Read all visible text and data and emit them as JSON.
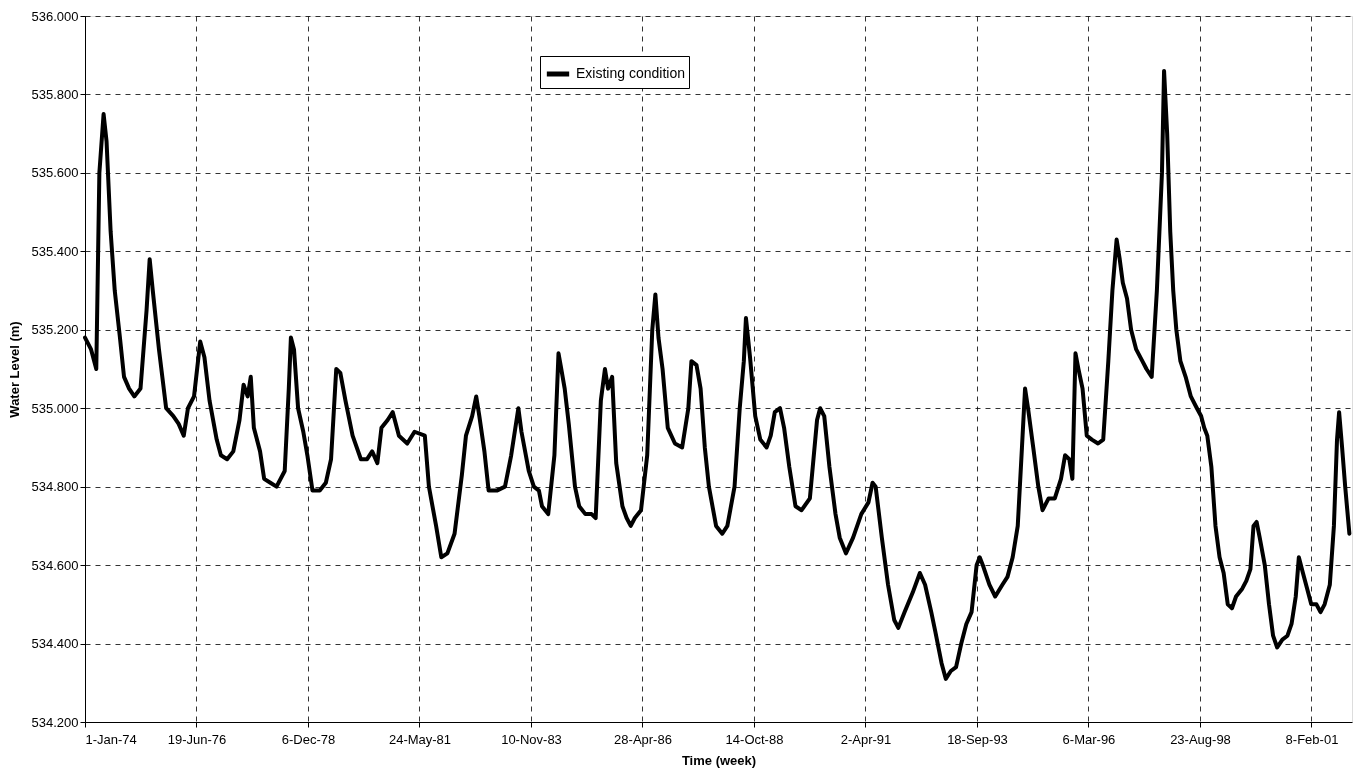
{
  "chart_data": {
    "type": "line",
    "xlabel": "Time (week)",
    "ylabel": "Water Level (m)",
    "x": [
      "1974-01-01",
      "1974-02-19",
      "1974-04-02",
      "1974-04-27",
      "1974-05-31",
      "1974-06-24",
      "1974-07-27",
      "1974-08-29",
      "1974-10-10",
      "1974-11-12",
      "1974-12-23",
      "1975-02-03",
      "1975-03-25",
      "1975-05-13",
      "1975-06-07",
      "1975-07-02",
      "1975-08-21",
      "1975-10-18",
      "1975-12-15",
      "1976-01-27",
      "1976-03-08",
      "1976-04-11",
      "1976-05-30",
      "1976-07-19",
      "1976-08-22",
      "1976-10-02",
      "1976-11-29",
      "1977-01-02",
      "1977-02-21",
      "1977-04-12",
      "1977-06-01",
      "1977-07-04",
      "1977-08-06",
      "1977-08-31",
      "1977-09-25",
      "1977-11-14",
      "1977-12-17",
      "1978-02-05",
      "1978-03-27",
      "1978-06-01",
      "1978-07-04",
      "1978-07-21",
      "1978-08-15",
      "1978-09-17",
      "1978-10-29",
      "1978-12-01",
      "1979-01-11",
      "1979-03-11",
      "1979-04-29",
      "1979-06-10",
      "1979-07-22",
      "1979-08-24",
      "1979-10-04",
      "1979-12-01",
      "1980-02-06",
      "1980-03-27",
      "1980-05-07",
      "1980-06-18",
      "1980-07-21",
      "1980-09-09",
      "1980-10-20",
      "1980-12-09",
      "1981-02-14",
      "1981-04-14",
      "1981-07-06",
      "1981-08-08",
      "1981-10-05",
      "1981-11-16",
      "1982-01-04",
      "1982-03-03",
      "1982-05-01",
      "1982-06-03",
      "1982-07-23",
      "1982-08-25",
      "1982-09-19",
      "1982-10-30",
      "1982-12-03",
      "1983-02-07",
      "1983-04-14",
      "1983-06-03",
      "1983-07-31",
      "1983-08-25",
      "1983-10-23",
      "1983-12-03",
      "1984-01-13",
      "1984-02-07",
      "1984-03-28",
      "1984-05-17",
      "1984-06-19",
      "1984-07-06",
      "1984-08-08",
      "1984-09-10",
      "1984-10-30",
      "1984-12-03",
      "1985-01-22",
      "1985-03-13",
      "1985-04-15",
      "1985-05-27",
      "1985-06-29",
      "1985-07-24",
      "1985-08-26",
      "1985-09-28",
      "1985-11-17",
      "1985-12-21",
      "1986-01-23",
      "1986-02-25",
      "1986-04-16",
      "1986-06-05",
      "1986-07-16",
      "1986-08-10",
      "1986-09-04",
      "1986-10-07",
      "1986-11-18",
      "1987-01-15",
      "1987-03-14",
      "1987-05-03",
      "1987-05-28",
      "1987-07-08",
      "1987-08-10",
      "1987-09-13",
      "1987-10-16",
      "1987-12-13",
      "1988-02-01",
      "1988-03-13",
      "1988-05-10",
      "1988-06-21",
      "1988-07-24",
      "1988-08-10",
      "1988-09-12",
      "1988-10-24",
      "1988-12-04",
      "1989-01-24",
      "1989-02-26",
      "1989-03-31",
      "1989-05-12",
      "1989-06-14",
      "1989-07-26",
      "1989-09-14",
      "1989-11-02",
      "1990-01-08",
      "1990-03-07",
      "1990-04-01",
      "1990-05-04",
      "1990-06-15",
      "1990-08-03",
      "1990-09-06",
      "1990-10-26",
      "1990-12-23",
      "1991-02-27",
      "1991-04-26",
      "1991-05-29",
      "1991-06-23",
      "1991-08-12",
      "1991-10-01",
      "1991-11-20",
      "1991-12-23",
      "1992-02-11",
      "1992-04-17",
      "1992-06-14",
      "1992-07-26",
      "1992-09-14",
      "1992-10-17",
      "1992-12-06",
      "1993-01-09",
      "1993-02-19",
      "1993-04-02",
      "1993-05-14",
      "1993-06-24",
      "1993-08-05",
      "1993-09-15",
      "1993-10-10",
      "1993-11-04",
      "1993-12-27",
      "1994-02-12",
      "1994-04-11",
      "1994-05-22",
      "1994-07-03",
      "1994-08-13",
      "1994-09-16",
      "1994-10-11",
      "1994-11-04",
      "1994-12-16",
      "1995-01-26",
      "1995-03-01",
      "1995-04-19",
      "1995-06-08",
      "1995-07-28",
      "1995-08-30",
      "1995-10-03",
      "1995-10-28",
      "1995-11-22",
      "1995-12-16",
      "1996-01-18",
      "1996-02-21",
      "1996-04-02",
      "1996-05-22",
      "1996-07-03",
      "1996-08-13",
      "1996-09-15",
      "1996-10-19",
      "1996-11-13",
      "1996-12-08",
      "1997-01-11",
      "1997-02-13",
      "1997-03-26",
      "1997-05-15",
      "1997-06-17",
      "1997-07-29",
      "1997-09-09",
      "1997-10-20",
      "1997-11-06",
      "1997-12-01",
      "1997-12-26",
      "1998-01-19",
      "1998-02-13",
      "1998-03-18",
      "1998-04-29",
      "1998-06-10",
      "1998-07-29",
      "1998-09-01",
      "1998-09-26",
      "1998-10-21",
      "1998-11-23",
      "1998-12-26",
      "1999-01-28",
      "1999-03-02",
      "1999-04-04",
      "1999-05-08",
      "1999-06-10",
      "1999-07-30",
      "1999-09-01",
      "1999-10-04",
      "1999-10-29",
      "1999-11-23",
      "1999-12-18",
      "2000-01-28",
      "2000-03-02",
      "2000-04-04",
      "2000-05-07",
      "2000-06-18",
      "2000-07-29",
      "2000-08-31",
      "2000-10-04",
      "2000-10-29",
      "2000-12-01",
      "2001-01-04",
      "2001-02-06",
      "2001-03-20",
      "2001-04-22",
      "2001-05-25",
      "2001-07-06",
      "2001-08-08",
      "2001-09-02",
      "2001-09-19",
      "2001-10-13",
      "2001-11-07",
      "2001-12-11"
    ],
    "series": [
      {
        "name": "Existing condition",
        "color": "#000000",
        "values": [
          535.18,
          535.15,
          535.1,
          535.6,
          535.75,
          535.68,
          535.45,
          535.3,
          535.18,
          535.08,
          535.05,
          535.03,
          535.05,
          535.25,
          535.38,
          535.3,
          535.15,
          535.0,
          534.98,
          534.96,
          534.93,
          535.0,
          535.03,
          535.17,
          535.13,
          535.02,
          534.92,
          534.88,
          534.87,
          534.89,
          534.97,
          535.06,
          535.03,
          535.08,
          534.95,
          534.89,
          534.82,
          534.81,
          534.8,
          534.84,
          535.05,
          535.18,
          535.15,
          535.0,
          534.94,
          534.88,
          534.79,
          534.79,
          534.81,
          534.87,
          535.1,
          535.09,
          535.02,
          534.93,
          534.87,
          534.87,
          534.89,
          534.86,
          534.95,
          534.97,
          534.99,
          534.93,
          534.91,
          534.94,
          534.93,
          534.8,
          534.7,
          534.62,
          534.63,
          534.68,
          534.83,
          534.93,
          534.98,
          535.03,
          534.98,
          534.89,
          534.79,
          534.79,
          534.8,
          534.88,
          535.0,
          534.94,
          534.84,
          534.8,
          534.79,
          534.75,
          534.73,
          534.88,
          535.14,
          535.11,
          535.05,
          534.96,
          534.8,
          534.75,
          534.73,
          534.73,
          534.72,
          535.02,
          535.1,
          535.05,
          535.08,
          534.86,
          534.75,
          534.72,
          534.7,
          534.72,
          534.74,
          534.88,
          535.2,
          535.29,
          535.18,
          535.1,
          534.95,
          534.91,
          534.9,
          535.0,
          535.12,
          535.11,
          535.05,
          534.9,
          534.8,
          534.7,
          534.68,
          534.7,
          534.8,
          535.0,
          535.12,
          535.23,
          535.13,
          534.98,
          534.92,
          534.9,
          534.93,
          534.99,
          535.0,
          534.95,
          534.85,
          534.75,
          534.74,
          534.77,
          534.97,
          535.0,
          534.98,
          534.85,
          534.73,
          534.67,
          534.63,
          534.67,
          534.73,
          534.76,
          534.81,
          534.8,
          534.67,
          534.55,
          534.46,
          534.44,
          534.48,
          534.53,
          534.58,
          534.55,
          534.48,
          534.43,
          534.35,
          534.31,
          534.33,
          534.34,
          534.4,
          534.45,
          534.48,
          534.6,
          534.62,
          534.6,
          534.55,
          534.52,
          534.55,
          534.57,
          534.62,
          534.7,
          534.9,
          535.05,
          535.0,
          534.9,
          534.8,
          534.74,
          534.77,
          534.77,
          534.82,
          534.88,
          534.87,
          534.82,
          535.14,
          535.1,
          535.05,
          534.93,
          534.92,
          534.91,
          534.92,
          535.12,
          535.3,
          535.43,
          535.38,
          535.32,
          535.28,
          535.2,
          535.15,
          535.12,
          535.1,
          535.08,
          535.3,
          535.6,
          535.86,
          535.7,
          535.45,
          535.3,
          535.2,
          535.12,
          535.08,
          535.03,
          535.0,
          534.98,
          534.95,
          534.93,
          534.85,
          534.7,
          534.62,
          534.58,
          534.5,
          534.49,
          534.52,
          534.54,
          534.56,
          534.59,
          534.7,
          534.71,
          534.67,
          534.6,
          534.5,
          534.42,
          534.39,
          534.41,
          534.42,
          534.45,
          534.52,
          534.62,
          534.58,
          534.54,
          534.5,
          534.5,
          534.48,
          534.5,
          534.55,
          534.7,
          534.92,
          534.99,
          534.9,
          534.8,
          534.68
        ]
      }
    ],
    "xlim": [
      "1974-01-01",
      "2002-01-01"
    ],
    "xticks": [
      {
        "value": "1974-01-01",
        "label": "1-Jan-74"
      },
      {
        "value": "1976-06-19",
        "label": "19-Jun-76"
      },
      {
        "value": "1978-12-06",
        "label": "6-Dec-78"
      },
      {
        "value": "1981-05-24",
        "label": "24-May-81"
      },
      {
        "value": "1983-11-10",
        "label": "10-Nov-83"
      },
      {
        "value": "1986-04-28",
        "label": "28-Apr-86"
      },
      {
        "value": "1988-10-14",
        "label": "14-Oct-88"
      },
      {
        "value": "1991-04-02",
        "label": "2-Apr-91"
      },
      {
        "value": "1993-09-18",
        "label": "18-Sep-93"
      },
      {
        "value": "1996-03-06",
        "label": "6-Mar-96"
      },
      {
        "value": "1998-08-23",
        "label": "23-Aug-98"
      },
      {
        "value": "2001-02-08",
        "label": "8-Feb-01"
      }
    ],
    "ylim": [
      534.2,
      536.0
    ],
    "yticks": [
      {
        "value": 534.2,
        "label": "534.200"
      },
      {
        "value": 534.4,
        "label": "534.400"
      },
      {
        "value": 534.6,
        "label": "534.600"
      },
      {
        "value": 534.8,
        "label": "534.800"
      },
      {
        "value": 535.0,
        "label": "535.000"
      },
      {
        "value": 535.2,
        "label": "535.200"
      },
      {
        "value": 535.4,
        "label": "535.400"
      },
      {
        "value": 535.6,
        "label": "535.600"
      },
      {
        "value": 535.8,
        "label": "535.800"
      },
      {
        "value": 536.0,
        "label": "536.000"
      }
    ],
    "grid": true,
    "legend": "top",
    "marker": "none",
    "line_style": "solid"
  }
}
